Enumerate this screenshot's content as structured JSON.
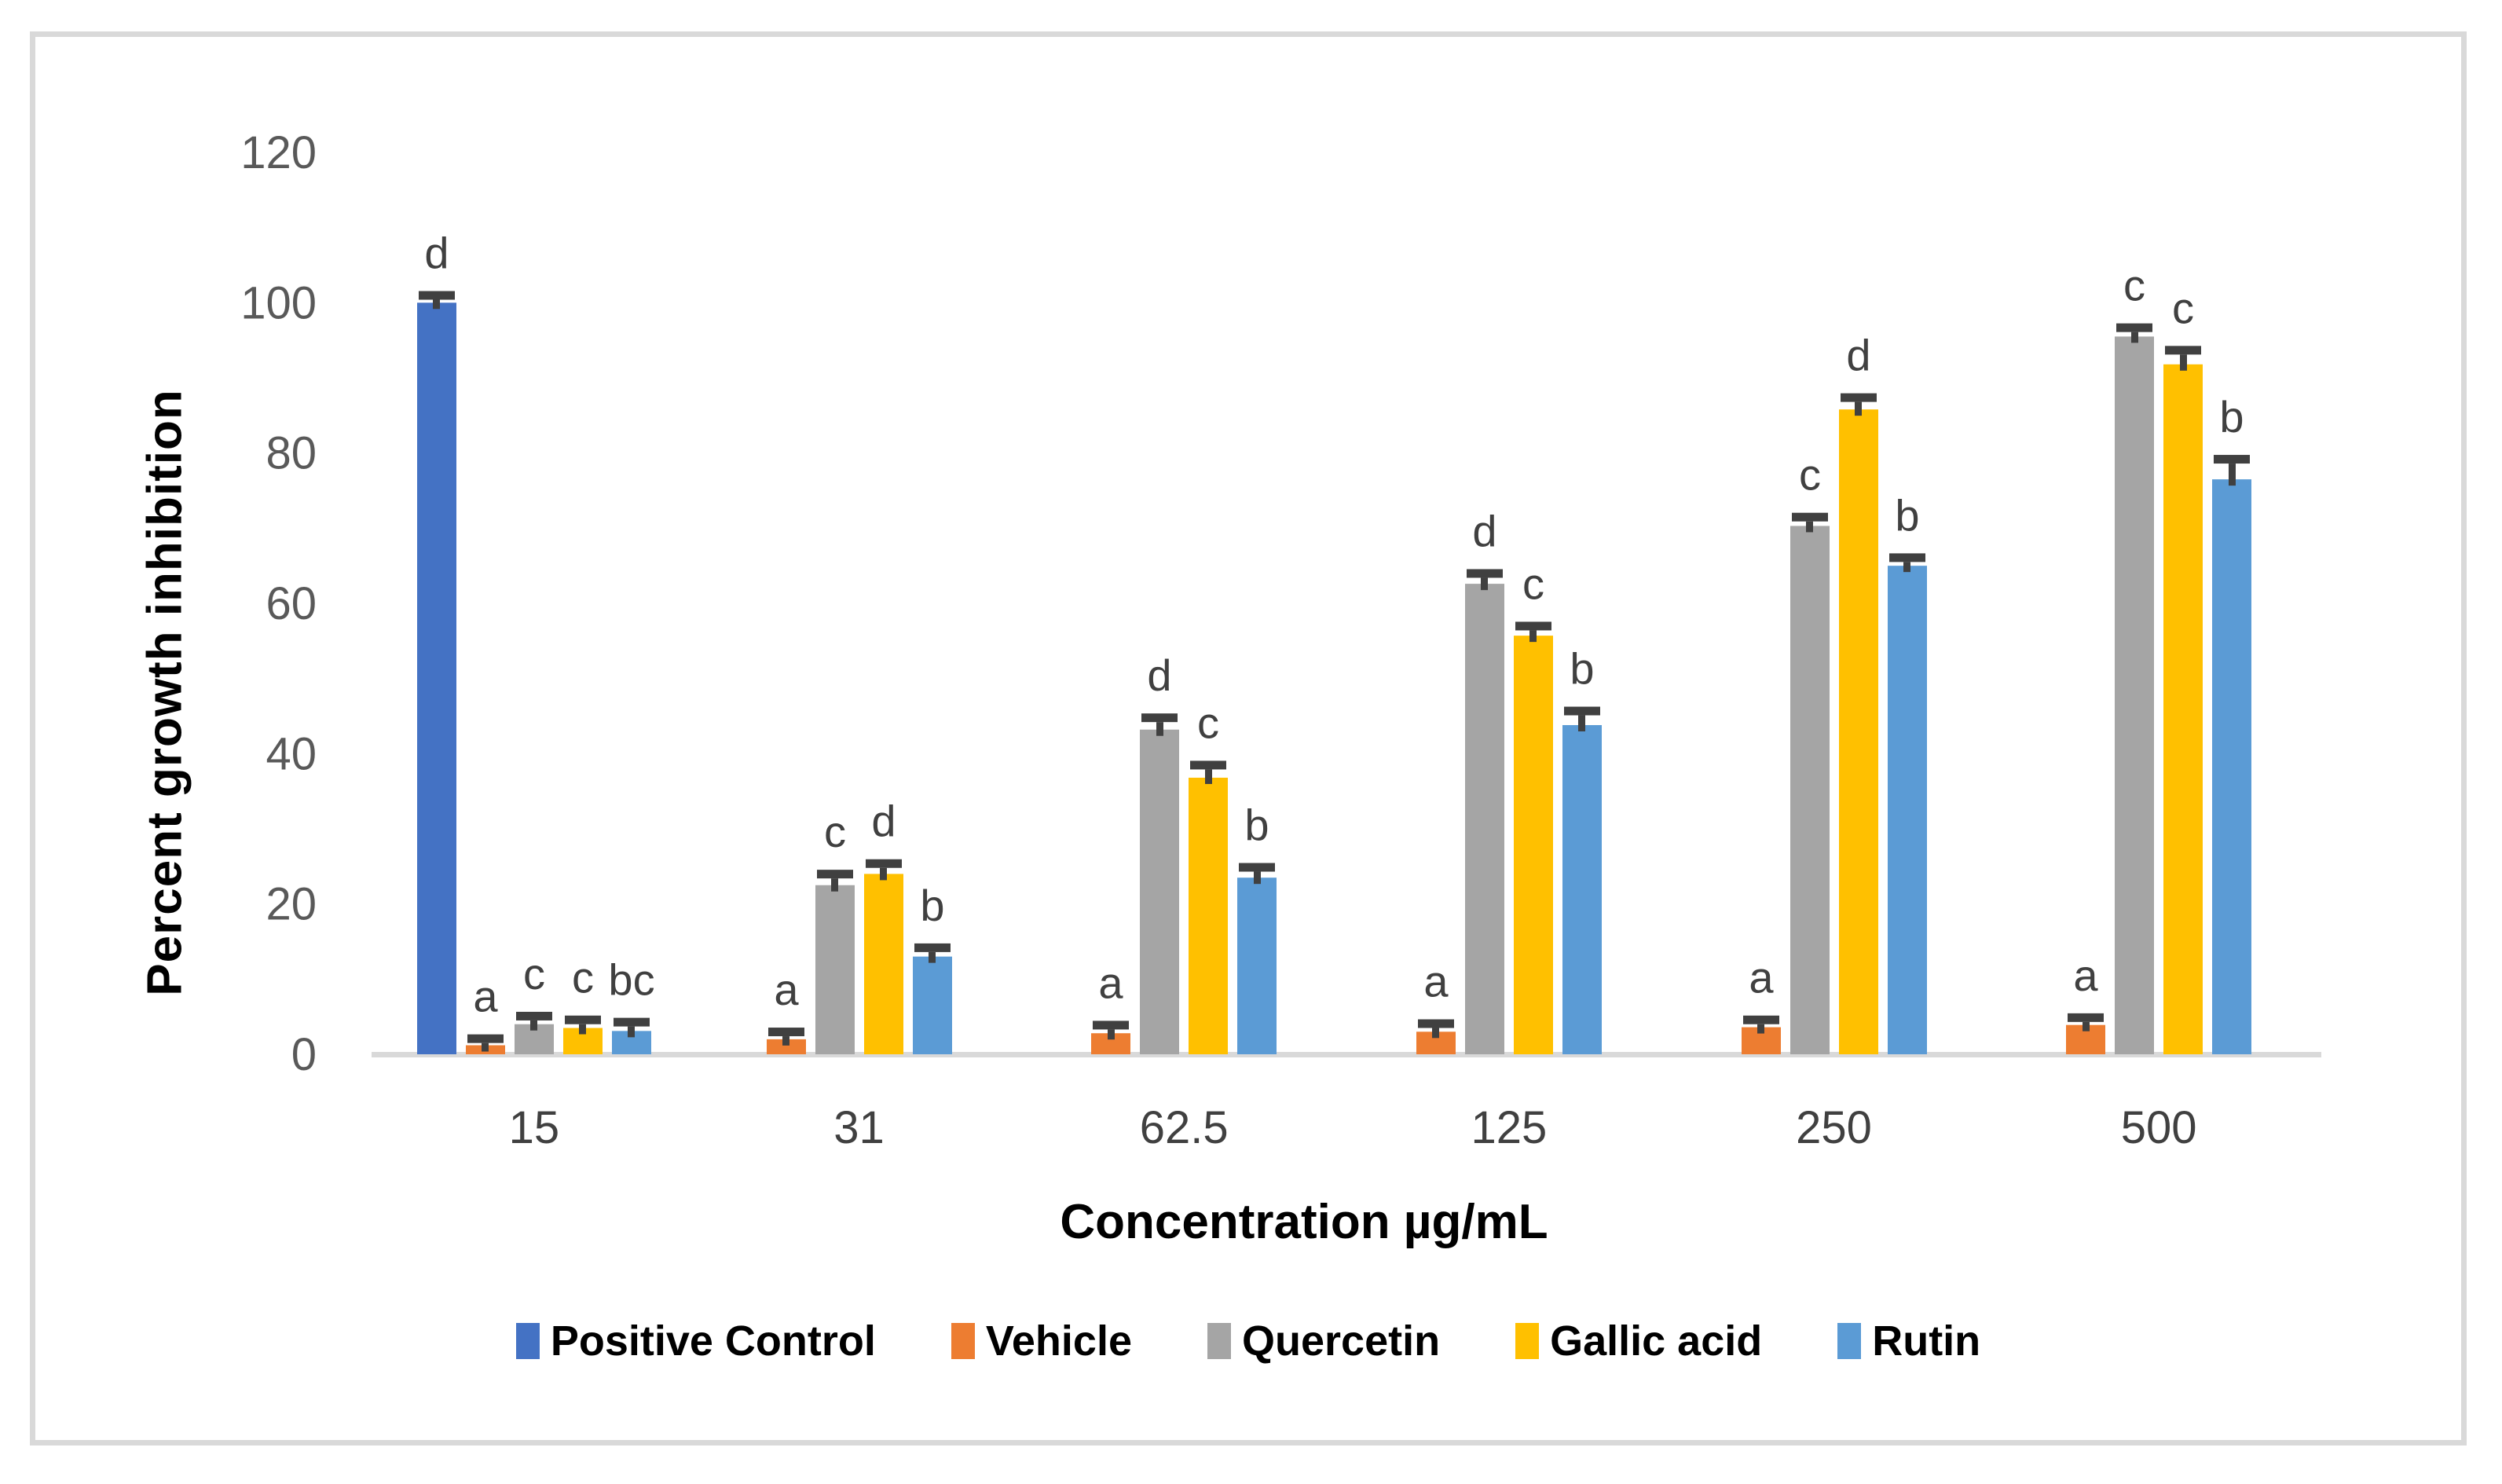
{
  "figure": {
    "frame_border_color": "#D9D9D9",
    "background_color": "#FFFFFF"
  },
  "chart_data": {
    "type": "bar",
    "title": "",
    "xlabel": "Concentration µg/mL",
    "ylabel": "Percent growth inhibition",
    "categories": [
      "15",
      "31",
      "62.5",
      "125",
      "250",
      "500"
    ],
    "y_ticks": [
      0,
      20,
      40,
      60,
      80,
      100,
      120
    ],
    "ylim": [
      0,
      120
    ],
    "grid": false,
    "legend_position": "bottom",
    "styles": {
      "axis_line_color": "#D9D9D9",
      "y_tick_label_color": "#595959",
      "x_tick_label_color": "#404040",
      "error_bar_color": "#404040",
      "letter_color": "#404040"
    },
    "series": [
      {
        "name": "Positive Control",
        "color": "#4472C4",
        "values": [
          100,
          null,
          null,
          null,
          null,
          null
        ],
        "errors": [
          0.4,
          null,
          null,
          null,
          null,
          null
        ],
        "letters": [
          "d",
          "",
          "",
          "",
          "",
          ""
        ]
      },
      {
        "name": "Vehicle",
        "color": "#ED7D31",
        "values": [
          1.2,
          2.0,
          2.8,
          3.0,
          3.6,
          3.9
        ],
        "errors": [
          0.3,
          0.4,
          0.5,
          0.5,
          0.4,
          0.4
        ],
        "letters": [
          "a",
          "a",
          "a",
          "a",
          "a",
          "a"
        ]
      },
      {
        "name": "Quercetin",
        "color": "#A5A5A5",
        "values": [
          4.0,
          22.5,
          43.2,
          62.6,
          70.3,
          95.5
        ],
        "errors": [
          0.5,
          0.9,
          1.0,
          0.8,
          0.6,
          0.6
        ],
        "letters": [
          "c",
          "c",
          "d",
          "d",
          "c",
          "c"
        ]
      },
      {
        "name": "Gallic acid",
        "color": "#FFC000",
        "values": [
          3.5,
          24.0,
          36.8,
          55.7,
          85.8,
          91.8
        ],
        "errors": [
          0.5,
          0.8,
          1.1,
          0.7,
          1.0,
          1.3
        ],
        "letters": [
          "c",
          "d",
          "c",
          "c",
          "d",
          "c"
        ]
      },
      {
        "name": "Rutin",
        "color": "#5B9BD5",
        "values": [
          3.1,
          13.0,
          23.5,
          43.8,
          65.0,
          76.5
        ],
        "errors": [
          0.6,
          0.6,
          0.8,
          1.3,
          0.5,
          2.1
        ],
        "letters": [
          "bc",
          "b",
          "b",
          "b",
          "b",
          "b"
        ]
      }
    ]
  }
}
